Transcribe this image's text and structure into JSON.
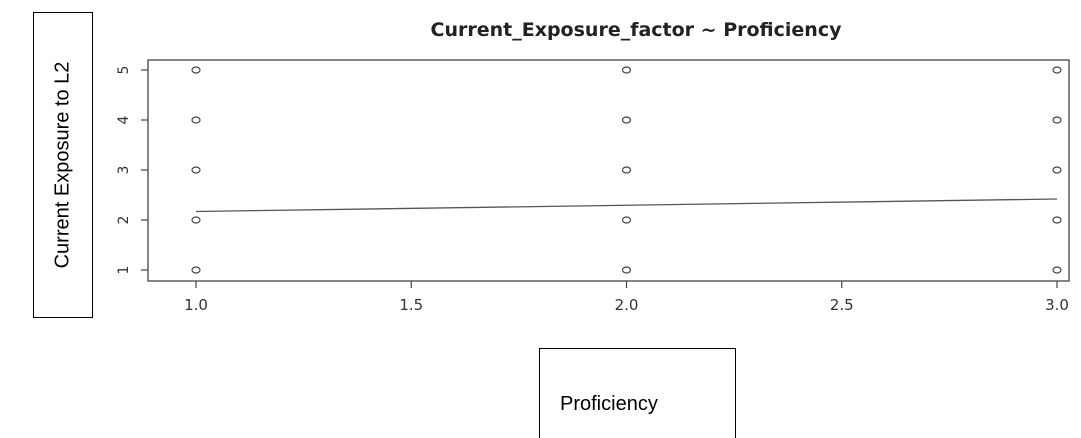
{
  "chart_data": {
    "type": "scatter",
    "title": "Current_Exposure_factor ~ Proficiency",
    "xlabel": "Proficiency",
    "ylabel": "Current Exposure to L2",
    "x_ticks": [
      "1.0",
      "1.5",
      "2.0",
      "2.5",
      "3.0"
    ],
    "x_tick_values": [
      1.0,
      1.5,
      2.0,
      2.5,
      3.0
    ],
    "y_ticks": [
      "1",
      "2",
      "3",
      "4",
      "5"
    ],
    "y_tick_values": [
      1,
      2,
      3,
      4,
      5
    ],
    "xlim": [
      1.0,
      3.0
    ],
    "ylim": [
      1,
      5
    ],
    "points": [
      {
        "x": 1,
        "y": 1
      },
      {
        "x": 1,
        "y": 2
      },
      {
        "x": 1,
        "y": 3
      },
      {
        "x": 1,
        "y": 4
      },
      {
        "x": 1,
        "y": 5
      },
      {
        "x": 2,
        "y": 1
      },
      {
        "x": 2,
        "y": 2
      },
      {
        "x": 2,
        "y": 3
      },
      {
        "x": 2,
        "y": 4
      },
      {
        "x": 2,
        "y": 5
      },
      {
        "x": 3,
        "y": 1
      },
      {
        "x": 3,
        "y": 2
      },
      {
        "x": 3,
        "y": 3
      },
      {
        "x": 3,
        "y": 4
      },
      {
        "x": 3,
        "y": 5
      }
    ],
    "fit_line": [
      {
        "x": 1.0,
        "y": 2.17
      },
      {
        "x": 3.0,
        "y": 2.42
      }
    ],
    "grid": false,
    "colors": {
      "points": "#444444",
      "line": "#555555",
      "axes": "#444444",
      "text": "#222222"
    }
  }
}
